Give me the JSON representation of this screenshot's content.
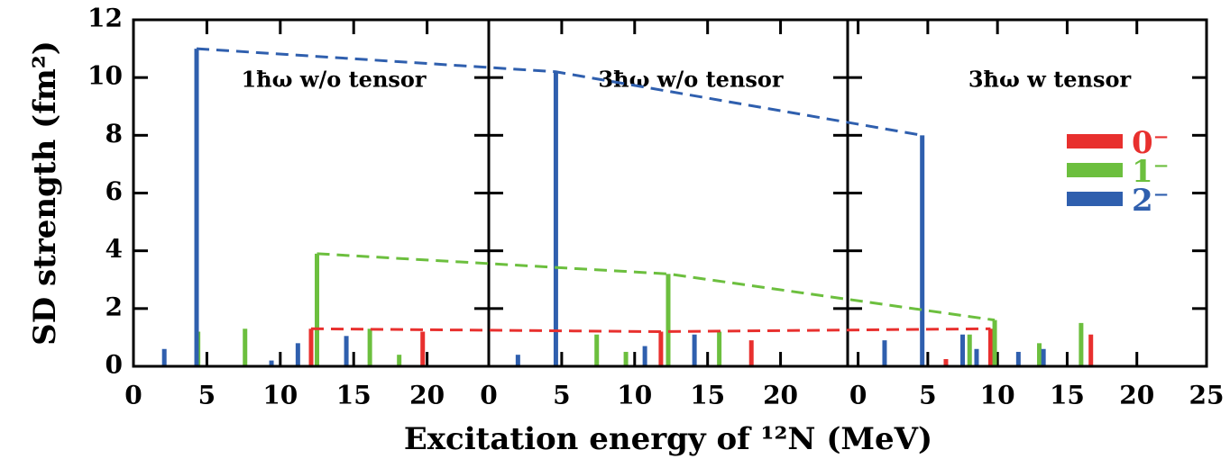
{
  "chart_data": [
    {
      "type": "stem",
      "title": "1ħω w/o tensor",
      "ylabel": "SD strength (fm²)",
      "xlim": [
        0,
        24.2
      ],
      "xticks": [
        0,
        5,
        10,
        15,
        20
      ],
      "ylim": [
        0,
        12
      ],
      "yticks": [
        0,
        2,
        4,
        6,
        8,
        10,
        12
      ],
      "series": [
        {
          "name": "0⁻",
          "color": "#e8302e",
          "x": [
            12.1,
            19.7
          ],
          "values": [
            1.3,
            1.2
          ]
        },
        {
          "name": "1⁻",
          "color": "#6cbf3e",
          "x": [
            4.4,
            7.6,
            12.5,
            16.1,
            18.1
          ],
          "values": [
            1.2,
            1.3,
            3.9,
            1.3,
            0.4
          ]
        },
        {
          "name": "2⁻",
          "color": "#2f5fae",
          "x": [
            2.1,
            4.3,
            9.4,
            11.2,
            14.5
          ],
          "values": [
            0.6,
            11.0,
            0.2,
            0.8,
            1.05
          ]
        }
      ]
    },
    {
      "type": "stem",
      "title": "3ħω w/o tensor",
      "xlabel": "Excitation energy of ¹²N (MeV)",
      "xlim": [
        0,
        24.6
      ],
      "xticks": [
        0,
        5,
        10,
        15,
        20
      ],
      "ylim": [
        0,
        12
      ],
      "series": [
        {
          "name": "0⁻",
          "color": "#e8302e",
          "x": [
            11.8,
            18.0
          ],
          "values": [
            1.2,
            0.9
          ]
        },
        {
          "name": "1⁻",
          "color": "#6cbf3e",
          "x": [
            7.4,
            9.4,
            12.3,
            15.8
          ],
          "values": [
            1.1,
            0.5,
            3.2,
            1.2
          ]
        },
        {
          "name": "2⁻",
          "color": "#2f5fae",
          "x": [
            2.0,
            4.6,
            10.7,
            14.1
          ],
          "values": [
            0.4,
            10.2,
            0.7,
            1.1
          ]
        }
      ]
    },
    {
      "type": "stem",
      "title": "3ħω w tensor",
      "legend": "upper right",
      "xlim": [
        -0.75,
        25
      ],
      "xticks": [
        0,
        5,
        10,
        15,
        20,
        25
      ],
      "ylim": [
        0,
        12
      ],
      "series": [
        {
          "name": "0⁻",
          "color": "#e8302e",
          "x": [
            6.3,
            9.5,
            16.7
          ],
          "values": [
            0.25,
            1.3,
            1.1
          ]
        },
        {
          "name": "1⁻",
          "color": "#6cbf3e",
          "x": [
            8.0,
            9.8,
            13.0,
            16.0
          ],
          "values": [
            1.1,
            1.6,
            0.8,
            1.5
          ]
        },
        {
          "name": "2⁻",
          "color": "#2f5fae",
          "x": [
            1.9,
            4.6,
            7.5,
            8.5,
            11.5,
            13.3
          ],
          "values": [
            0.9,
            8.0,
            1.1,
            0.6,
            0.5,
            0.6
          ]
        }
      ]
    }
  ]
}
